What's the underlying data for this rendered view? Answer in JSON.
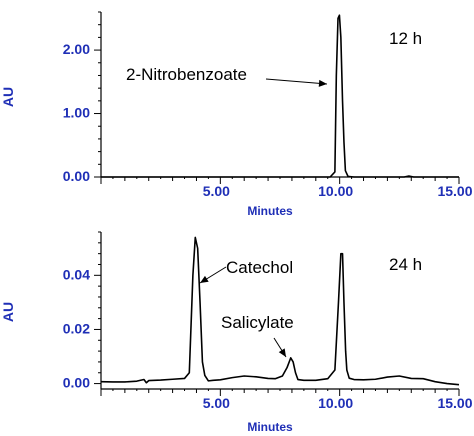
{
  "chart_data": [
    {
      "type": "line",
      "annotation_time": "12 h",
      "xlabel": "Minutes",
      "ylabel": "AU",
      "xlim": [
        0,
        15
      ],
      "ylim": [
        0,
        2.6
      ],
      "xticks": [
        5,
        10,
        15
      ],
      "xtick_labels": [
        "5.00",
        "10.00",
        "15.00"
      ],
      "yticks": [
        0,
        1,
        2
      ],
      "ytick_labels": [
        "0.00",
        "1.00",
        "2.00"
      ],
      "grid": false,
      "axis_color": "#000000",
      "tick_label_color": "#1f2fb6",
      "series": [
        {
          "color": "#000000",
          "x": [
            0,
            1,
            2,
            3,
            4,
            5,
            6,
            7,
            8,
            9,
            9.6,
            9.8,
            9.86,
            9.93,
            9.99,
            10.05,
            10.12,
            10.18,
            10.24,
            10.35,
            10.6,
            11,
            12,
            12.7,
            12.9,
            13.1,
            14,
            15
          ],
          "y": [
            0,
            0,
            0,
            0,
            0,
            0,
            0,
            0,
            0,
            0,
            0,
            0.08,
            1.6,
            2.5,
            2.55,
            2.2,
            1.2,
            0.55,
            0.1,
            0.01,
            0,
            0,
            0,
            0,
            0.015,
            0,
            0,
            0
          ]
        }
      ],
      "annotations": [
        {
          "text": "2-Nitrobenzoate",
          "x": 9.88,
          "y": 1.6
        }
      ]
    },
    {
      "type": "line",
      "annotation_time": "24 h",
      "xlabel": "Minutes",
      "ylabel": "AU",
      "xlim": [
        0,
        15
      ],
      "ylim": [
        -0.002,
        0.056
      ],
      "xticks": [
        5,
        10,
        15
      ],
      "xtick_labels": [
        "5.00",
        "10.00",
        "15.00"
      ],
      "yticks": [
        0,
        0.02,
        0.04
      ],
      "ytick_labels": [
        "0.00",
        "0.02",
        "0.04"
      ],
      "grid": false,
      "axis_color": "#000000",
      "tick_label_color": "#1f2fb6",
      "series": [
        {
          "color": "#000000",
          "x": [
            0,
            0.5,
            1,
            1.5,
            1.8,
            1.9,
            2.0,
            2.5,
            3,
            3.5,
            3.7,
            3.85,
            3.95,
            4.05,
            4.15,
            4.25,
            4.35,
            4.5,
            4.7,
            5,
            5.5,
            6,
            6.5,
            7,
            7.3,
            7.6,
            7.8,
            7.95,
            8.05,
            8.15,
            8.25,
            8.5,
            9.0,
            9.5,
            9.8,
            9.95,
            10.05,
            10.12,
            10.18,
            10.25,
            10.3,
            10.4,
            10.6,
            11,
            11.5,
            12,
            12.5,
            13,
            13.5,
            14,
            14.5,
            15
          ],
          "y": [
            0.0007,
            0.0006,
            0.0006,
            0.0009,
            0.0015,
            0.0003,
            0.0011,
            0.0013,
            0.0016,
            0.0019,
            0.004,
            0.04,
            0.054,
            0.05,
            0.03,
            0.008,
            0.003,
            0.001,
            0.0012,
            0.0014,
            0.0022,
            0.0028,
            0.0025,
            0.0019,
            0.0018,
            0.0028,
            0.006,
            0.0095,
            0.008,
            0.004,
            0.0015,
            0.0012,
            0.0012,
            0.0018,
            0.005,
            0.03,
            0.048,
            0.048,
            0.03,
            0.012,
            0.005,
            0.002,
            0.0015,
            0.0014,
            0.0016,
            0.0024,
            0.0028,
            0.0019,
            0.0018,
            0.0007,
            0,
            -0.0004
          ]
        }
      ],
      "annotations": [
        {
          "text": "Catechol",
          "x": 4.1,
          "y": 0.047
        },
        {
          "text": "Salicylate",
          "x": 8.05,
          "y": 0.0095
        }
      ]
    }
  ]
}
